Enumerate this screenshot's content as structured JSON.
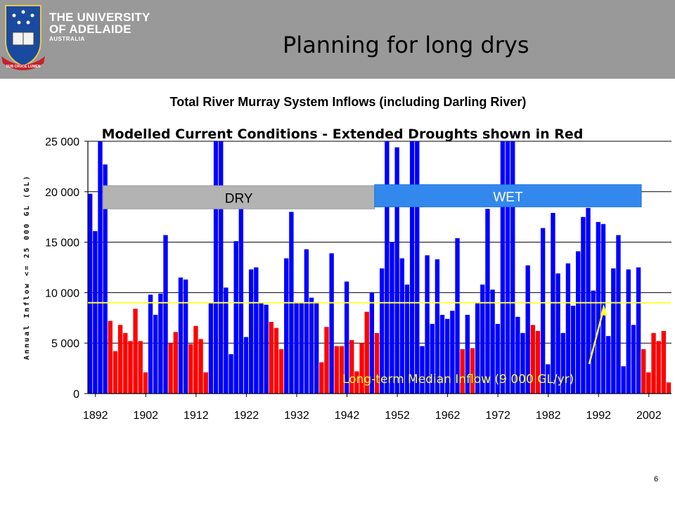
{
  "slide": {
    "title": "Planning for long drys",
    "page_number": "6"
  },
  "logo": {
    "line1": "THE UNIVERSITY",
    "line2": "OF ADELAIDE",
    "line3": "AUSTRALIA",
    "motto": "SUB CRUCE LUMEN",
    "icon": "university-crest-icon"
  },
  "chart_data": {
    "type": "bar",
    "title": "Total River Murray System Inflows (including Darling River)",
    "subtitle": "Modelled Current Conditions - Extended Droughts shown in Red",
    "ylabel": "Annual Inflow <= 25 000 GL (GL)",
    "xlabel": "",
    "ylim": [
      0,
      25000
    ],
    "yticks": [
      "0",
      "5 000",
      "10 000",
      "15 000",
      "20 000",
      "25 000"
    ],
    "xticks": [
      "1892",
      "1902",
      "1912",
      "1922",
      "1932",
      "1942",
      "1952",
      "1962",
      "1972",
      "1982",
      "1992",
      "2002"
    ],
    "grid": true,
    "x_start": 1891,
    "x_end": 2006,
    "colors": {
      "normal": "#0000ff",
      "drought": "#ff0000",
      "median": "#ffff33"
    },
    "bars": [
      {
        "year": 1891,
        "value": 19800,
        "drought": false
      },
      {
        "year": 1892,
        "value": 16100,
        "drought": false
      },
      {
        "year": 1893,
        "value": 25000,
        "drought": false
      },
      {
        "year": 1894,
        "value": 22700,
        "drought": false
      },
      {
        "year": 1895,
        "value": 7200,
        "drought": true
      },
      {
        "year": 1896,
        "value": 4200,
        "drought": true
      },
      {
        "year": 1897,
        "value": 6800,
        "drought": true
      },
      {
        "year": 1898,
        "value": 6000,
        "drought": true
      },
      {
        "year": 1899,
        "value": 5200,
        "drought": true
      },
      {
        "year": 1900,
        "value": 8400,
        "drought": true
      },
      {
        "year": 1901,
        "value": 5200,
        "drought": true
      },
      {
        "year": 1902,
        "value": 2100,
        "drought": true
      },
      {
        "year": 1903,
        "value": 9800,
        "drought": false
      },
      {
        "year": 1904,
        "value": 7800,
        "drought": false
      },
      {
        "year": 1905,
        "value": 9900,
        "drought": false
      },
      {
        "year": 1906,
        "value": 15700,
        "drought": false
      },
      {
        "year": 1907,
        "value": 5000,
        "drought": true
      },
      {
        "year": 1908,
        "value": 6100,
        "drought": true
      },
      {
        "year": 1909,
        "value": 11500,
        "drought": false
      },
      {
        "year": 1910,
        "value": 11300,
        "drought": false
      },
      {
        "year": 1911,
        "value": 4900,
        "drought": true
      },
      {
        "year": 1912,
        "value": 6700,
        "drought": true
      },
      {
        "year": 1913,
        "value": 5400,
        "drought": true
      },
      {
        "year": 1914,
        "value": 2100,
        "drought": true
      },
      {
        "year": 1915,
        "value": 9000,
        "drought": false
      },
      {
        "year": 1916,
        "value": 25000,
        "drought": false
      },
      {
        "year": 1917,
        "value": 25000,
        "drought": false
      },
      {
        "year": 1918,
        "value": 10500,
        "drought": false
      },
      {
        "year": 1919,
        "value": 3900,
        "drought": false
      },
      {
        "year": 1920,
        "value": 15100,
        "drought": false
      },
      {
        "year": 1921,
        "value": 18500,
        "drought": false
      },
      {
        "year": 1922,
        "value": 5600,
        "drought": false
      },
      {
        "year": 1923,
        "value": 12300,
        "drought": false
      },
      {
        "year": 1924,
        "value": 12500,
        "drought": false
      },
      {
        "year": 1925,
        "value": 9000,
        "drought": false
      },
      {
        "year": 1926,
        "value": 8800,
        "drought": false
      },
      {
        "year": 1927,
        "value": 7100,
        "drought": true
      },
      {
        "year": 1928,
        "value": 6500,
        "drought": true
      },
      {
        "year": 1929,
        "value": 4400,
        "drought": true
      },
      {
        "year": 1930,
        "value": 13400,
        "drought": false
      },
      {
        "year": 1931,
        "value": 18000,
        "drought": false
      },
      {
        "year": 1932,
        "value": 9000,
        "drought": false
      },
      {
        "year": 1933,
        "value": 9000,
        "drought": false
      },
      {
        "year": 1934,
        "value": 14300,
        "drought": false
      },
      {
        "year": 1935,
        "value": 9500,
        "drought": false
      },
      {
        "year": 1936,
        "value": 9000,
        "drought": false
      },
      {
        "year": 1937,
        "value": 3100,
        "drought": true
      },
      {
        "year": 1938,
        "value": 6600,
        "drought": true
      },
      {
        "year": 1939,
        "value": 13900,
        "drought": false
      },
      {
        "year": 1940,
        "value": 4700,
        "drought": true
      },
      {
        "year": 1941,
        "value": 4700,
        "drought": true
      },
      {
        "year": 1942,
        "value": 11100,
        "drought": false
      },
      {
        "year": 1943,
        "value": 5300,
        "drought": true
      },
      {
        "year": 1944,
        "value": 2200,
        "drought": true
      },
      {
        "year": 1945,
        "value": 5000,
        "drought": true
      },
      {
        "year": 1946,
        "value": 8100,
        "drought": true
      },
      {
        "year": 1947,
        "value": 10000,
        "drought": false
      },
      {
        "year": 1948,
        "value": 6000,
        "drought": true
      },
      {
        "year": 1949,
        "value": 12400,
        "drought": false
      },
      {
        "year": 1950,
        "value": 25000,
        "drought": false
      },
      {
        "year": 1951,
        "value": 15000,
        "drought": false
      },
      {
        "year": 1952,
        "value": 24400,
        "drought": false
      },
      {
        "year": 1953,
        "value": 13400,
        "drought": false
      },
      {
        "year": 1954,
        "value": 10800,
        "drought": false
      },
      {
        "year": 1955,
        "value": 25000,
        "drought": false
      },
      {
        "year": 1956,
        "value": 25000,
        "drought": false
      },
      {
        "year": 1957,
        "value": 4700,
        "drought": false
      },
      {
        "year": 1958,
        "value": 13700,
        "drought": false
      },
      {
        "year": 1959,
        "value": 6900,
        "drought": false
      },
      {
        "year": 1960,
        "value": 13300,
        "drought": false
      },
      {
        "year": 1961,
        "value": 7800,
        "drought": false
      },
      {
        "year": 1962,
        "value": 7400,
        "drought": false
      },
      {
        "year": 1963,
        "value": 8200,
        "drought": false
      },
      {
        "year": 1964,
        "value": 15400,
        "drought": false
      },
      {
        "year": 1965,
        "value": 4400,
        "drought": true
      },
      {
        "year": 1966,
        "value": 7800,
        "drought": false
      },
      {
        "year": 1967,
        "value": 4500,
        "drought": true
      },
      {
        "year": 1968,
        "value": 9000,
        "drought": false
      },
      {
        "year": 1969,
        "value": 10800,
        "drought": false
      },
      {
        "year": 1970,
        "value": 18300,
        "drought": false
      },
      {
        "year": 1971,
        "value": 10300,
        "drought": false
      },
      {
        "year": 1972,
        "value": 6900,
        "drought": false
      },
      {
        "year": 1973,
        "value": 25000,
        "drought": false
      },
      {
        "year": 1974,
        "value": 25000,
        "drought": false
      },
      {
        "year": 1975,
        "value": 25000,
        "drought": false
      },
      {
        "year": 1976,
        "value": 7600,
        "drought": false
      },
      {
        "year": 1977,
        "value": 6000,
        "drought": false
      },
      {
        "year": 1978,
        "value": 12700,
        "drought": false
      },
      {
        "year": 1979,
        "value": 6800,
        "drought": true
      },
      {
        "year": 1980,
        "value": 6200,
        "drought": true
      },
      {
        "year": 1981,
        "value": 16400,
        "drought": false
      },
      {
        "year": 1982,
        "value": 2900,
        "drought": false
      },
      {
        "year": 1983,
        "value": 17900,
        "drought": false
      },
      {
        "year": 1984,
        "value": 11900,
        "drought": false
      },
      {
        "year": 1985,
        "value": 6000,
        "drought": false
      },
      {
        "year": 1986,
        "value": 12900,
        "drought": false
      },
      {
        "year": 1987,
        "value": 8700,
        "drought": false
      },
      {
        "year": 1988,
        "value": 14100,
        "drought": false
      },
      {
        "year": 1989,
        "value": 17500,
        "drought": false
      },
      {
        "year": 1990,
        "value": 18400,
        "drought": false
      },
      {
        "year": 1991,
        "value": 10200,
        "drought": false
      },
      {
        "year": 1992,
        "value": 17000,
        "drought": false
      },
      {
        "year": 1993,
        "value": 16800,
        "drought": false
      },
      {
        "year": 1994,
        "value": 5700,
        "drought": false
      },
      {
        "year": 1995,
        "value": 12400,
        "drought": false
      },
      {
        "year": 1996,
        "value": 15700,
        "drought": false
      },
      {
        "year": 1997,
        "value": 2700,
        "drought": false
      },
      {
        "year": 1998,
        "value": 12300,
        "drought": false
      },
      {
        "year": 1999,
        "value": 6800,
        "drought": false
      },
      {
        "year": 2000,
        "value": 12500,
        "drought": false
      },
      {
        "year": 2001,
        "value": 4400,
        "drought": true
      },
      {
        "year": 2002,
        "value": 2100,
        "drought": true
      },
      {
        "year": 2003,
        "value": 6000,
        "drought": true
      },
      {
        "year": 2004,
        "value": 5200,
        "drought": true
      },
      {
        "year": 2005,
        "value": 6200,
        "drought": true
      },
      {
        "year": 2006,
        "value": 1100,
        "drought": true
      }
    ],
    "median": {
      "value": 9000,
      "label": "Long-term Median Inflow (9 000 GL/yr)"
    },
    "periods": [
      {
        "label": "DRY",
        "start_year": 1894,
        "end_year": 1947,
        "color": "#b3b3b3",
        "text_color": "#000000",
        "border": "#9a9a9a",
        "value_top": 20600,
        "value_bottom": 18300
      },
      {
        "label": "WET",
        "start_year": 1948,
        "end_year": 2000,
        "color": "#3388ee",
        "text_color": "#ffffff",
        "border": "#1f6fd8",
        "value_top": 20700,
        "value_bottom": 18500
      }
    ]
  }
}
